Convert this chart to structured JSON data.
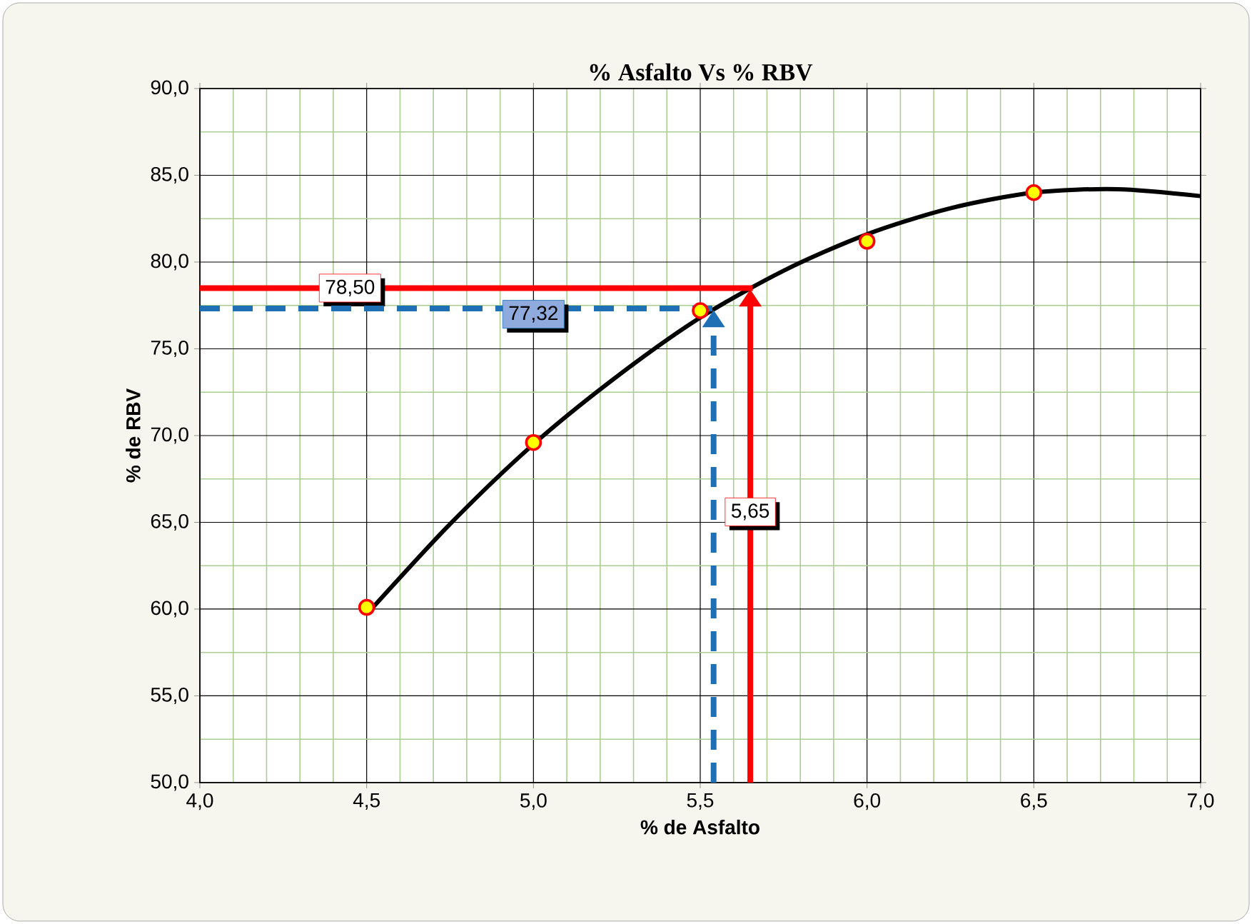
{
  "chart_data": {
    "type": "scatter",
    "title": "% Asfalto Vs % RBV",
    "xlabel": "% de Asfalto",
    "ylabel": "% de RBV",
    "series": [
      {
        "color": "#ffff00",
        "marker": "circle",
        "x": [
          4.5,
          5.0,
          5.5,
          6.0,
          6.5
        ],
        "values": [
          60.1,
          69.6,
          77.2,
          81.2,
          84.0
        ]
      },
      {
        "type": "line",
        "color": "#000000",
        "marker": "none",
        "line_style": "solid",
        "x": [
          4.5,
          4.75,
          5.0,
          5.25,
          5.5,
          5.75,
          6.0,
          6.25,
          6.5,
          6.75,
          7.0
        ],
        "values": [
          59.7,
          64.9,
          69.5,
          73.4,
          76.8,
          79.5,
          81.6,
          83.1,
          84.0,
          84.2,
          83.8
        ]
      }
    ],
    "ref_lines": [
      {
        "axis": "y",
        "value": 78.5,
        "label": "78,50",
        "color": "#ff0000",
        "line_style": "solid"
      },
      {
        "axis": "x",
        "value": 5.65,
        "label": "5,65",
        "color": "#ff0000",
        "line_style": "solid"
      },
      {
        "axis": "y",
        "value": 77.32,
        "label": "77,32",
        "color": "#1f6fb5",
        "line_style": "dashed"
      },
      {
        "axis": "x",
        "value": 5.54,
        "color": "#1f6fb5",
        "line_style": "dashed"
      }
    ],
    "xlim": [
      4.0,
      7.0
    ],
    "ylim": [
      50,
      90
    ],
    "xticks": [
      {
        "value": 4.0,
        "label": "4,0"
      },
      {
        "value": 4.1,
        "label": null
      },
      {
        "value": 4.2,
        "label": null
      },
      {
        "value": 4.3,
        "label": null
      },
      {
        "value": 4.4,
        "label": null
      },
      {
        "value": 4.5,
        "label": "4,5"
      },
      {
        "value": 4.6,
        "label": null
      },
      {
        "value": 4.7,
        "label": null
      },
      {
        "value": 4.8,
        "label": null
      },
      {
        "value": 4.9,
        "label": null
      },
      {
        "value": 5.0,
        "label": "5,0"
      },
      {
        "value": 5.1,
        "label": null
      },
      {
        "value": 5.2,
        "label": null
      },
      {
        "value": 5.3,
        "label": null
      },
      {
        "value": 5.4,
        "label": null
      },
      {
        "value": 5.5,
        "label": "5,5"
      },
      {
        "value": 5.6,
        "label": null
      },
      {
        "value": 5.7,
        "label": null
      },
      {
        "value": 5.8,
        "label": null
      },
      {
        "value": 5.9,
        "label": null
      },
      {
        "value": 6.0,
        "label": "6,0"
      },
      {
        "value": 6.1,
        "label": null
      },
      {
        "value": 6.2,
        "label": null
      },
      {
        "value": 6.3,
        "label": null
      },
      {
        "value": 6.4,
        "label": null
      },
      {
        "value": 6.5,
        "label": "6,5"
      },
      {
        "value": 6.6,
        "label": null
      },
      {
        "value": 6.7,
        "label": null
      },
      {
        "value": 6.8,
        "label": null
      },
      {
        "value": 6.9,
        "label": null
      },
      {
        "value": 7.0,
        "label": "7,0"
      }
    ],
    "yticks": [
      {
        "value": 50,
        "label": "50,0"
      },
      {
        "value": 52.5,
        "label": null
      },
      {
        "value": 55,
        "label": "55,0"
      },
      {
        "value": 57.5,
        "label": null
      },
      {
        "value": 60,
        "label": "60,0"
      },
      {
        "value": 62.5,
        "label": null
      },
      {
        "value": 65,
        "label": "65,0"
      },
      {
        "value": 67.5,
        "label": null
      },
      {
        "value": 70,
        "label": "70,0"
      },
      {
        "value": 72.5,
        "label": null
      },
      {
        "value": 75,
        "label": "75,0"
      },
      {
        "value": 77.5,
        "label": null
      },
      {
        "value": 80,
        "label": "80,0"
      },
      {
        "value": 82.5,
        "label": null
      },
      {
        "value": 85,
        "label": "85,0"
      },
      {
        "value": 87.5,
        "label": null
      },
      {
        "value": 90,
        "label": "90,0"
      }
    ],
    "grid": true,
    "legend": false
  }
}
